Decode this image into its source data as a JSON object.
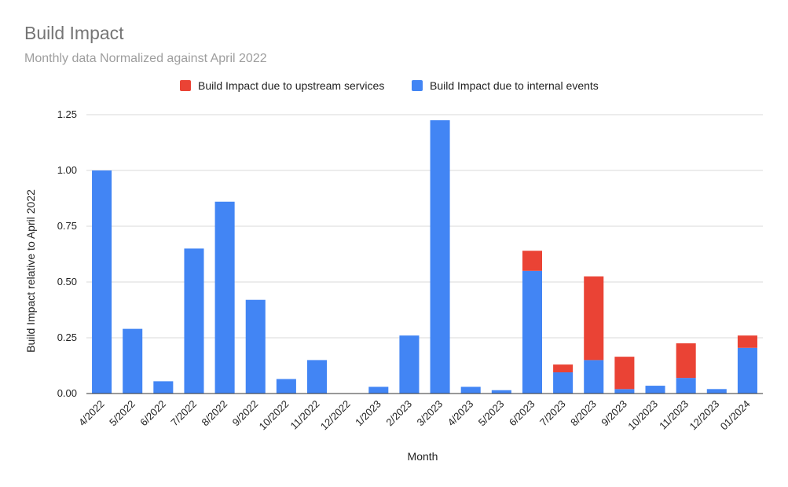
{
  "chart_data": {
    "type": "bar",
    "stacked": true,
    "title": "Build Impact",
    "subtitle": "Monthly data Normalized against April 2022",
    "xlabel": "Month",
    "ylabel": "Build Impact relative to April 2022",
    "ylim": [
      0,
      1.25
    ],
    "yticks": [
      "0.00",
      "0.25",
      "0.50",
      "0.75",
      "1.00",
      "1.25"
    ],
    "grid": true,
    "legend_position": "top",
    "categories": [
      "4/2022",
      "5/2022",
      "6/2022",
      "7/2022",
      "8/2022",
      "9/2022",
      "10/2022",
      "11/2022",
      "12/2022",
      "1/2023",
      "2/2023",
      "3/2023",
      "4/2023",
      "5/2023",
      "6/2023",
      "7/2023",
      "8/2023",
      "9/2023",
      "10/2023",
      "11/2023",
      "12/2023",
      "01/2024"
    ],
    "series": [
      {
        "name": "Build Impact due to internal events",
        "color": "#4285f4",
        "values": [
          1.0,
          0.29,
          0.055,
          0.65,
          0.86,
          0.42,
          0.065,
          0.15,
          0.0,
          0.03,
          0.26,
          1.225,
          0.03,
          0.015,
          0.55,
          0.095,
          0.15,
          0.02,
          0.035,
          0.07,
          0.02,
          0.205
        ]
      },
      {
        "name": "Build Impact due to upstream services",
        "color": "#ea4335",
        "values": [
          0,
          0,
          0,
          0,
          0,
          0,
          0,
          0,
          0,
          0,
          0,
          0,
          0,
          0,
          0.09,
          0.035,
          0.375,
          0.145,
          0,
          0.155,
          0,
          0.055
        ]
      }
    ],
    "legend_order": [
      1,
      0
    ]
  }
}
